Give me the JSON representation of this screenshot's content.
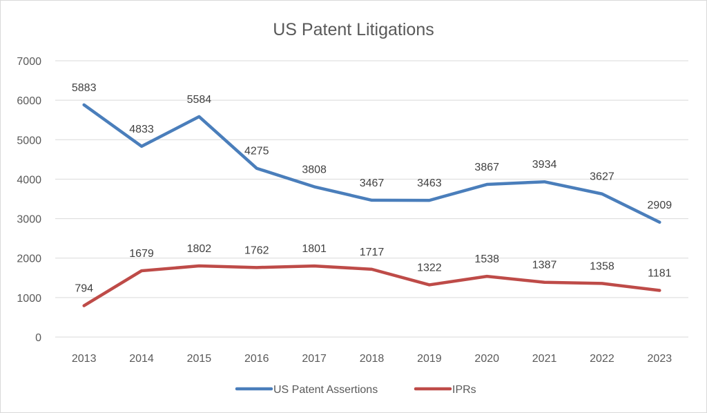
{
  "chart_data": {
    "type": "line",
    "title": "US Patent Litigations",
    "xlabel": "",
    "ylabel": "",
    "categories": [
      "2013",
      "2014",
      "2015",
      "2016",
      "2017",
      "2018",
      "2019",
      "2020",
      "2021",
      "2022",
      "2023"
    ],
    "ylim": [
      0,
      7000
    ],
    "yticks": [
      0,
      1000,
      2000,
      3000,
      4000,
      5000,
      6000,
      7000
    ],
    "grid": true,
    "legend_position": "bottom",
    "data_labels": true,
    "series": [
      {
        "name": "US Patent Assertions",
        "color": "#4A7EBB",
        "values": [
          5883,
          4833,
          5584,
          4275,
          3808,
          3467,
          3463,
          3867,
          3934,
          3627,
          2909
        ]
      },
      {
        "name": "IPRs",
        "color": "#BE4B48",
        "values": [
          794,
          1679,
          1802,
          1762,
          1801,
          1717,
          1322,
          1538,
          1387,
          1358,
          1181
        ]
      }
    ]
  }
}
